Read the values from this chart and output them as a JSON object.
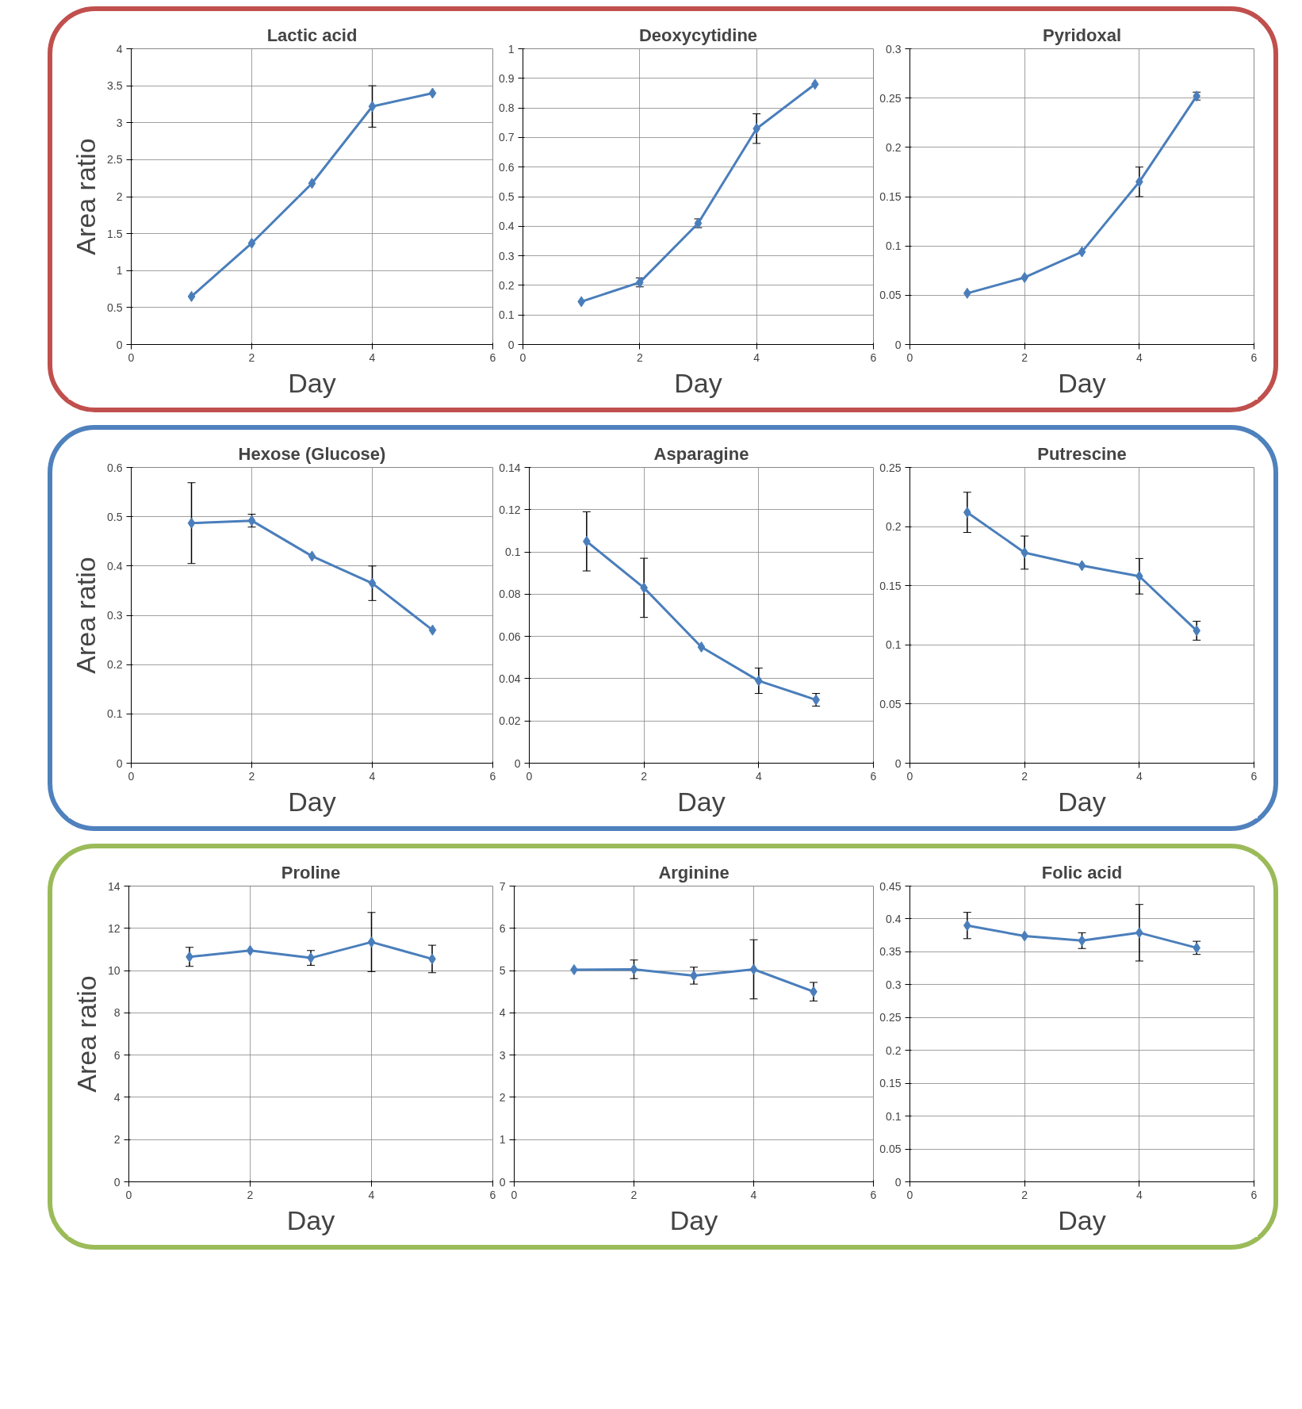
{
  "chart_data": [
    {
      "type": "line",
      "title": "Lactic acid",
      "xlabel": "Day",
      "ylabel": "Area ratio",
      "x": [
        1,
        2,
        3,
        4,
        5
      ],
      "xlim": [
        0,
        6
      ],
      "xticks": [
        0,
        2,
        4,
        6
      ],
      "ylim": [
        0,
        4
      ],
      "yticks": [
        0,
        0.5,
        1,
        1.5,
        2,
        2.5,
        3,
        3.5,
        4
      ],
      "grid": true,
      "marker": "diamond",
      "series": [
        {
          "color": "#4a7ebb",
          "values": [
            0.65,
            1.37,
            2.18,
            3.22,
            3.4
          ],
          "errors": [
            null,
            null,
            null,
            0.28,
            null
          ]
        }
      ]
    },
    {
      "type": "line",
      "title": "Deoxycytidine",
      "xlabel": "Day",
      "x": [
        1,
        2,
        3,
        4,
        5
      ],
      "xlim": [
        0,
        6
      ],
      "xticks": [
        0,
        2,
        4,
        6
      ],
      "ylim": [
        0,
        1
      ],
      "yticks": [
        0,
        0.1,
        0.2,
        0.3,
        0.4,
        0.5,
        0.6,
        0.7,
        0.8,
        0.9,
        1
      ],
      "grid": true,
      "marker": "diamond",
      "series": [
        {
          "color": "#4a7ebb",
          "values": [
            0.145,
            0.21,
            0.41,
            0.73,
            0.88
          ],
          "errors": [
            null,
            0.015,
            0.015,
            0.05,
            null
          ]
        }
      ]
    },
    {
      "type": "line",
      "title": "Pyridoxal",
      "xlabel": "Day",
      "x": [
        1,
        2,
        3,
        4,
        5
      ],
      "xlim": [
        0,
        6
      ],
      "xticks": [
        0,
        2,
        4,
        6
      ],
      "ylim": [
        0,
        0.3
      ],
      "yticks": [
        0,
        0.05,
        0.1,
        0.15,
        0.2,
        0.25,
        0.3
      ],
      "grid": true,
      "marker": "diamond",
      "series": [
        {
          "color": "#4a7ebb",
          "values": [
            0.052,
            0.068,
            0.094,
            0.165,
            0.252
          ],
          "errors": [
            null,
            null,
            null,
            0.015,
            0.004
          ]
        }
      ]
    },
    {
      "type": "line",
      "title": "Hexose (Glucose)",
      "xlabel": "Day",
      "ylabel": "Area ratio",
      "x": [
        1,
        2,
        3,
        4,
        5
      ],
      "xlim": [
        0,
        6
      ],
      "xticks": [
        0,
        2,
        4,
        6
      ],
      "ylim": [
        0,
        0.6
      ],
      "yticks": [
        0,
        0.1,
        0.2,
        0.3,
        0.4,
        0.5,
        0.6
      ],
      "grid": true,
      "marker": "diamond",
      "series": [
        {
          "color": "#4a7ebb",
          "values": [
            0.487,
            0.492,
            0.42,
            0.365,
            0.27
          ],
          "errors": [
            0.082,
            0.013,
            null,
            0.035,
            null
          ]
        }
      ]
    },
    {
      "type": "line",
      "title": "Asparagine",
      "xlabel": "Day",
      "x": [
        1,
        2,
        3,
        4,
        5
      ],
      "xlim": [
        0,
        6
      ],
      "xticks": [
        0,
        2,
        4,
        6
      ],
      "ylim": [
        0,
        0.14
      ],
      "yticks": [
        0,
        0.02,
        0.04,
        0.06,
        0.08,
        0.1,
        0.12,
        0.14
      ],
      "grid": true,
      "marker": "diamond",
      "series": [
        {
          "color": "#4a7ebb",
          "values": [
            0.105,
            0.083,
            0.055,
            0.039,
            0.03
          ],
          "errors": [
            0.014,
            0.014,
            null,
            0.006,
            0.003
          ]
        }
      ]
    },
    {
      "type": "line",
      "title": "Putrescine",
      "xlabel": "Day",
      "x": [
        1,
        2,
        3,
        4,
        5
      ],
      "xlim": [
        0,
        6
      ],
      "xticks": [
        0,
        2,
        4,
        6
      ],
      "ylim": [
        0,
        0.25
      ],
      "yticks": [
        0,
        0.05,
        0.1,
        0.15,
        0.2,
        0.25
      ],
      "grid": true,
      "marker": "diamond",
      "series": [
        {
          "color": "#4a7ebb",
          "values": [
            0.212,
            0.178,
            0.167,
            0.158,
            0.112
          ],
          "errors": [
            0.017,
            0.014,
            null,
            0.015,
            0.008
          ]
        }
      ]
    },
    {
      "type": "line",
      "title": "Proline",
      "xlabel": "Day",
      "ylabel": "Area ratio",
      "x": [
        1,
        2,
        3,
        4,
        5
      ],
      "xlim": [
        0,
        6
      ],
      "xticks": [
        0,
        2,
        4,
        6
      ],
      "ylim": [
        0,
        14
      ],
      "yticks": [
        0,
        2,
        4,
        6,
        8,
        10,
        12,
        14
      ],
      "grid": true,
      "marker": "diamond",
      "series": [
        {
          "color": "#4a7ebb",
          "values": [
            10.65,
            10.95,
            10.6,
            11.35,
            10.55
          ],
          "errors": [
            0.45,
            null,
            0.35,
            1.4,
            0.65
          ]
        }
      ]
    },
    {
      "type": "line",
      "title": "Arginine",
      "xlabel": "Day",
      "x": [
        1,
        2,
        3,
        4,
        5
      ],
      "xlim": [
        0,
        6
      ],
      "xticks": [
        0,
        2,
        4,
        6
      ],
      "ylim": [
        0,
        7
      ],
      "yticks": [
        0,
        1,
        2,
        3,
        4,
        5,
        6,
        7
      ],
      "grid": true,
      "marker": "diamond",
      "series": [
        {
          "color": "#4a7ebb",
          "values": [
            5.02,
            5.03,
            4.88,
            5.03,
            4.5
          ],
          "errors": [
            null,
            0.22,
            0.2,
            0.7,
            0.22
          ]
        }
      ]
    },
    {
      "type": "line",
      "title": "Folic acid",
      "xlabel": "Day",
      "x": [
        1,
        2,
        3,
        4,
        5
      ],
      "xlim": [
        0,
        6
      ],
      "xticks": [
        0,
        2,
        4,
        6
      ],
      "ylim": [
        0,
        0.45
      ],
      "yticks": [
        0,
        0.05,
        0.1,
        0.15,
        0.2,
        0.25,
        0.3,
        0.35,
        0.4,
        0.45
      ],
      "grid": true,
      "marker": "diamond",
      "series": [
        {
          "color": "#4a7ebb",
          "values": [
            0.39,
            0.374,
            0.367,
            0.379,
            0.356
          ],
          "errors": [
            0.02,
            null,
            0.012,
            0.043,
            0.01
          ]
        }
      ]
    }
  ]
}
